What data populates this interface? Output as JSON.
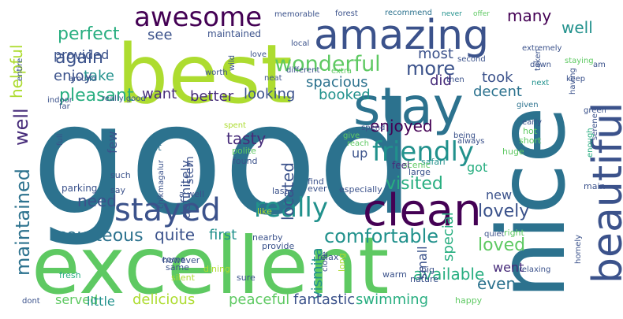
{
  "colors": {
    "background": "#ffffff",
    "palette": [
      "#440154",
      "#472c7a",
      "#3b528b",
      "#2c728e",
      "#21918c",
      "#28ae80",
      "#5ec962",
      "#addc30",
      "#fde725"
    ]
  },
  "words": [
    {
      "text": "good",
      "color": "#2c728e"
    },
    {
      "text": "excellent",
      "color": "#5ec962"
    },
    {
      "text": "nice",
      "color": "#2c728e"
    },
    {
      "text": "best",
      "color": "#addc30"
    },
    {
      "text": "amazing",
      "color": "#3b528b"
    },
    {
      "text": "stay",
      "color": "#2c728e"
    },
    {
      "text": "beautiful",
      "color": "#3b528b"
    },
    {
      "text": "clean",
      "color": "#440154"
    },
    {
      "text": "stayed",
      "color": "#3b528b"
    },
    {
      "text": "awesome",
      "color": "#440154"
    },
    {
      "text": "really",
      "color": "#21918c"
    },
    {
      "text": "friendly",
      "color": "#21918c"
    },
    {
      "text": "wonderful",
      "color": "#5ec962"
    },
    {
      "text": "maintained",
      "color": "#2c728e"
    },
    {
      "text": "well",
      "color": "#472c7a"
    },
    {
      "text": "more",
      "color": "#3b528b"
    },
    {
      "text": "comfortable",
      "color": "#21918c"
    },
    {
      "text": "perfect",
      "color": "#28ae80"
    },
    {
      "text": "pleasant",
      "color": "#28ae80"
    },
    {
      "text": "courteous",
      "color": "#2c728e"
    },
    {
      "text": "again",
      "color": "#3b528b"
    },
    {
      "text": "visited",
      "color": "#28ae80"
    },
    {
      "text": "enjoyed",
      "color": "#440154"
    },
    {
      "text": "located",
      "color": "#3b528b"
    },
    {
      "text": "helpful",
      "color": "#addc30"
    },
    {
      "text": "vismita",
      "color": "#21918c"
    },
    {
      "text": "lovely",
      "color": "#3b528b"
    },
    {
      "text": "loved",
      "color": "#5ec962"
    },
    {
      "text": "spacious",
      "color": "#2c728e"
    },
    {
      "text": "many",
      "color": "#440154"
    },
    {
      "text": "well",
      "color": "#21918c"
    },
    {
      "text": "need",
      "color": "#3b528b"
    },
    {
      "text": "quite",
      "color": "#3b528b"
    },
    {
      "text": "tasty",
      "color": "#472c7a"
    },
    {
      "text": "first",
      "color": "#21918c"
    },
    {
      "text": "available",
      "color": "#28ae80"
    },
    {
      "text": "even",
      "color": "#2c728e"
    },
    {
      "text": "delicious",
      "color": "#addc30"
    },
    {
      "text": "enjoy",
      "color": "#3b528b"
    },
    {
      "text": "take",
      "color": "#21918c"
    },
    {
      "text": "provided",
      "color": "#3b528b"
    },
    {
      "text": "see",
      "color": "#3b528b"
    },
    {
      "text": "want",
      "color": "#472c7a"
    },
    {
      "text": "better",
      "color": "#472c7a"
    },
    {
      "text": "looking",
      "color": "#3b528b"
    },
    {
      "text": "booked",
      "color": "#21918c"
    },
    {
      "text": "decent",
      "color": "#2c728e"
    },
    {
      "text": "most",
      "color": "#3b528b"
    },
    {
      "text": "did",
      "color": "#472c7a"
    },
    {
      "text": "took",
      "color": "#3b528b"
    },
    {
      "text": "went",
      "color": "#472c7a"
    },
    {
      "text": "fantastic",
      "color": "#3b528b"
    },
    {
      "text": "peaceful",
      "color": "#5ec962"
    },
    {
      "text": "swimming",
      "color": "#28ae80"
    },
    {
      "text": "served",
      "color": "#5ec962"
    },
    {
      "text": "little",
      "color": "#21918c"
    },
    {
      "text": "special",
      "color": "#28ae80"
    },
    {
      "text": "new",
      "color": "#3b528b"
    },
    {
      "text": "small",
      "color": "#3b528b"
    },
    {
      "text": "definitely",
      "color": "#3b528b"
    },
    {
      "text": "few",
      "color": "#3b528b"
    },
    {
      "text": "up",
      "color": "#3b528b"
    },
    {
      "text": "got",
      "color": "#28ae80"
    },
    {
      "text": "maintained",
      "color": "#3b528b"
    },
    {
      "text": "memorable",
      "color": "#3b528b"
    },
    {
      "text": "forest",
      "color": "#3b528b"
    },
    {
      "text": "recommend",
      "color": "#2c728e"
    },
    {
      "text": "never",
      "color": "#21918c"
    },
    {
      "text": "offer",
      "color": "#5ec962"
    },
    {
      "text": "staying",
      "color": "#5ec962"
    },
    {
      "text": "extremely",
      "color": "#3b528b"
    },
    {
      "text": "down",
      "color": "#3b528b"
    },
    {
      "text": "am",
      "color": "#3b528b"
    },
    {
      "text": "keep",
      "color": "#3b528b"
    },
    {
      "text": "next",
      "color": "#21918c"
    },
    {
      "text": "given",
      "color": "#2c728e"
    },
    {
      "text": "early",
      "color": "#3b528b"
    },
    {
      "text": "hot",
      "color": "#5ec962"
    },
    {
      "text": "short",
      "color": "#5ec962"
    },
    {
      "text": "green",
      "color": "#3b528b"
    },
    {
      "text": "serene",
      "color": "#3b528b"
    },
    {
      "text": "enough",
      "color": "#28ae80"
    },
    {
      "text": "huge",
      "color": "#5ec962"
    },
    {
      "text": "safari",
      "color": "#21918c"
    },
    {
      "text": "scenic",
      "color": "#5ec962"
    },
    {
      "text": "large",
      "color": "#3b528b"
    },
    {
      "text": "feel",
      "color": "#472c7a"
    },
    {
      "text": "spend",
      "color": "#3b528b"
    },
    {
      "text": "give",
      "color": "#5ec962"
    },
    {
      "text": "reach",
      "color": "#5ec962"
    },
    {
      "text": "being",
      "color": "#3b528b"
    },
    {
      "text": "always",
      "color": "#3b528b"
    },
    {
      "text": "spent",
      "color": "#addc30"
    },
    {
      "text": "polite",
      "color": "#5ec962"
    },
    {
      "text": "found",
      "color": "#3b528b"
    },
    {
      "text": "felt",
      "color": "#2c728e"
    },
    {
      "text": "chikmagalur",
      "color": "#3b528b"
    },
    {
      "text": "parking",
      "color": "#3b528b"
    },
    {
      "text": "such",
      "color": "#3b528b"
    },
    {
      "text": "say",
      "color": "#3b528b"
    },
    {
      "text": "a well",
      "color": "#3b528b"
    },
    {
      "text": "however",
      "color": "#3b528b"
    },
    {
      "text": "come",
      "color": "#3b528b"
    },
    {
      "text": "same",
      "color": "#3b528b"
    },
    {
      "text": "silent",
      "color": "#addc30"
    },
    {
      "text": "fresh",
      "color": "#28ae80"
    },
    {
      "text": "dont",
      "color": "#3b528b"
    },
    {
      "text": "sure",
      "color": "#3b528b"
    },
    {
      "text": "close",
      "color": "#3b528b"
    },
    {
      "text": "warm",
      "color": "#3b528b"
    },
    {
      "text": "long",
      "color": "#addc30"
    },
    {
      "text": "nature",
      "color": "#3b528b"
    },
    {
      "text": "big",
      "color": "#3b528b"
    },
    {
      "text": "happy",
      "color": "#5ec962"
    },
    {
      "text": "quiet",
      "color": "#3b528b"
    },
    {
      "text": "relaxing",
      "color": "#3b528b"
    },
    {
      "text": "homely",
      "color": "#3b528b"
    },
    {
      "text": "main",
      "color": "#3b528b"
    },
    {
      "text": "right",
      "color": "#5ec962"
    },
    {
      "text": "nearby",
      "color": "#3b528b"
    },
    {
      "text": "provide",
      "color": "#3b528b"
    },
    {
      "text": "last",
      "color": "#3b528b"
    },
    {
      "text": "ever",
      "color": "#3b528b"
    },
    {
      "text": "like",
      "color": "#addc30"
    },
    {
      "text": "dining",
      "color": "#addc30"
    },
    {
      "text": "relax",
      "color": "#3b528b"
    },
    {
      "text": "find",
      "color": "#3b528b"
    },
    {
      "text": "especially",
      "color": "#3b528b"
    },
    {
      "text": "local",
      "color": "#3b528b"
    },
    {
      "text": "love",
      "color": "#3b528b"
    },
    {
      "text": "worth",
      "color": "#3b528b"
    },
    {
      "text": "neat",
      "color": "#3b528b"
    },
    {
      "text": "different",
      "color": "#3b528b"
    },
    {
      "text": "extra",
      "color": "#5ec962"
    },
    {
      "text": "second",
      "color": "#3b528b"
    },
    {
      "text": "then",
      "color": "#3b528b"
    },
    {
      "text": "having",
      "color": "#3b528b"
    },
    {
      "text": "taken",
      "color": "#3b528b"
    },
    {
      "text": "around",
      "color": "#3b528b"
    },
    {
      "text": "entire",
      "color": "#3b528b"
    },
    {
      "text": "indoor",
      "color": "#3b528b"
    },
    {
      "text": "far",
      "color": "#3b528b"
    },
    {
      "text": "full",
      "color": "#3b528b"
    },
    {
      "text": "really good",
      "color": "#3b528b"
    },
    {
      "text": "wild",
      "color": "#3b528b"
    },
    {
      "text": "stern",
      "color": "#3b528b"
    }
  ]
}
